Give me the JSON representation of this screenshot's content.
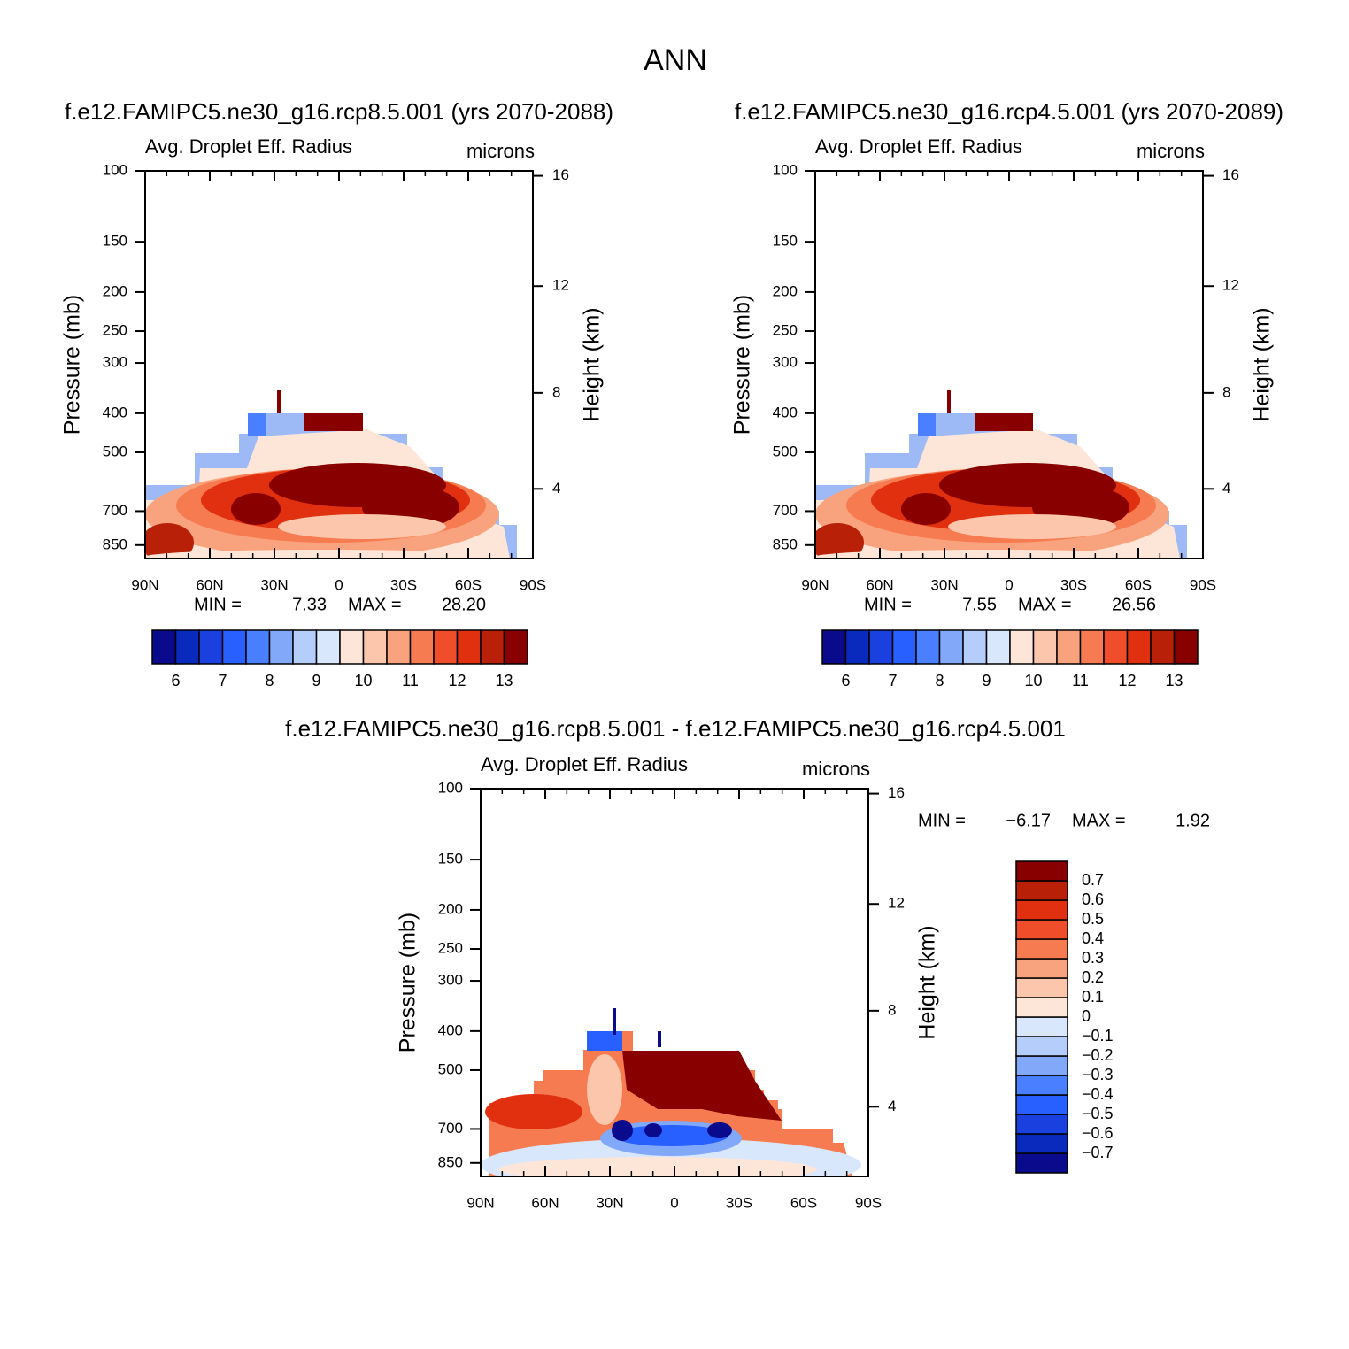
{
  "title": "ANN",
  "chart_data": [
    {
      "type": "contour",
      "title": "f.e12.FAMIPC5.ne30_g16.rcp8.5.001 (yrs 2070-2088)",
      "variable": "Avg. Droplet Eff. Radius",
      "units": "microns",
      "ylabel": "Pressure (mb)",
      "y2label": "Height (km)",
      "log_y": true,
      "ylim": [
        100,
        918
      ],
      "yticks": [
        100,
        150,
        200,
        250,
        300,
        400,
        500,
        700,
        850
      ],
      "y2ticks": [
        16,
        12,
        8,
        4
      ],
      "xlim": [
        90,
        -90
      ],
      "xticks": [
        {
          "value": 90,
          "label": "90N"
        },
        {
          "value": 60,
          "label": "60N"
        },
        {
          "value": 30,
          "label": "30N"
        },
        0,
        {
          "value": -30,
          "label": "30S"
        },
        {
          "value": -60,
          "label": "60S"
        },
        {
          "value": -90,
          "label": "90S"
        }
      ],
      "min_label": "MIN =",
      "min": 7.33,
      "max_label": "MAX =",
      "max": {
        "value": 28.2,
        "label": "28.20"
      },
      "colorbar": {
        "orientation": "horizontal",
        "colors": [
          "#0a0a8c",
          "#0a2abd",
          "#1a40e0",
          "#2860ff",
          "#4a80ff",
          "#82a8fa",
          "#b4cdfb",
          "#d8e7fc",
          "#fde6d8",
          "#fbc6ab",
          "#f8a37e",
          "#f67b50",
          "#f04e2a",
          "#e03010",
          "#b82008",
          "#880000"
        ],
        "labels": [
          6,
          7,
          8,
          9,
          10,
          11,
          12,
          13
        ]
      }
    },
    {
      "type": "contour",
      "title": "f.e12.FAMIPC5.ne30_g16.rcp4.5.001 (yrs 2070-2089)",
      "variable": "Avg. Droplet Eff. Radius",
      "units": "microns",
      "ylabel": "Pressure (mb)",
      "y2label": "Height (km)",
      "log_y": true,
      "ylim": [
        100,
        918
      ],
      "yticks": [
        100,
        150,
        200,
        250,
        300,
        400,
        500,
        700,
        850
      ],
      "y2ticks": [
        16,
        12,
        8,
        4
      ],
      "xlim": [
        90,
        -90
      ],
      "xticks": [
        {
          "value": 90,
          "label": "90N"
        },
        {
          "value": 60,
          "label": "60N"
        },
        {
          "value": 30,
          "label": "30N"
        },
        0,
        {
          "value": -30,
          "label": "30S"
        },
        {
          "value": -60,
          "label": "60S"
        },
        {
          "value": -90,
          "label": "90S"
        }
      ],
      "min_label": "MIN =",
      "min": 7.55,
      "max_label": "MAX =",
      "max": 26.56,
      "colorbar": {
        "orientation": "horizontal",
        "colors": [
          "#0a0a8c",
          "#0a2abd",
          "#1a40e0",
          "#2860ff",
          "#4a80ff",
          "#82a8fa",
          "#b4cdfb",
          "#d8e7fc",
          "#fde6d8",
          "#fbc6ab",
          "#f8a37e",
          "#f67b50",
          "#f04e2a",
          "#e03010",
          "#b82008",
          "#880000"
        ],
        "labels": [
          6,
          7,
          8,
          9,
          10,
          11,
          12,
          13
        ]
      }
    },
    {
      "type": "contour",
      "title": "f.e12.FAMIPC5.ne30_g16.rcp8.5.001 - f.e12.FAMIPC5.ne30_g16.rcp4.5.001",
      "variable": "Avg. Droplet Eff. Radius",
      "units": "microns",
      "ylabel": "Pressure (mb)",
      "y2label": "Height (km)",
      "log_y": true,
      "ylim": [
        100,
        918
      ],
      "yticks": [
        100,
        150,
        200,
        250,
        300,
        400,
        500,
        700,
        850
      ],
      "y2ticks": [
        16,
        12,
        8,
        4
      ],
      "xlim": [
        90,
        -90
      ],
      "xticks": [
        {
          "value": 90,
          "label": "90N"
        },
        {
          "value": 60,
          "label": "60N"
        },
        {
          "value": 30,
          "label": "30N"
        },
        0,
        {
          "value": -30,
          "label": "30S"
        },
        {
          "value": -60,
          "label": "60S"
        },
        {
          "value": -90,
          "label": "90S"
        }
      ],
      "min_label": "MIN =",
      "min": {
        "value": -6.17,
        "label": "−6.17"
      },
      "max_label": "MAX =",
      "max": 1.92,
      "colorbar": {
        "orientation": "vertical",
        "colors": [
          "#0a0a8c",
          "#0a2abd",
          "#1a40e0",
          "#2860ff",
          "#4a80ff",
          "#82a8fa",
          "#b4cdfb",
          "#d8e7fc",
          "#fde6d8",
          "#fbc6ab",
          "#f8a37e",
          "#f67b50",
          "#f04e2a",
          "#e03010",
          "#b82008",
          "#880000"
        ],
        "labels": [
          {
            "value": -0.7,
            "label": "−0.7"
          },
          {
            "value": -0.6,
            "label": "−0.6"
          },
          {
            "value": -0.5,
            "label": "−0.5"
          },
          {
            "value": -0.4,
            "label": "−0.4"
          },
          {
            "value": -0.3,
            "label": "−0.3"
          },
          {
            "value": -0.2,
            "label": "−0.2"
          },
          {
            "value": -0.1,
            "label": "−0.1"
          },
          0,
          0.1,
          0.2,
          0.3,
          0.4,
          0.5,
          0.6,
          0.7
        ]
      }
    }
  ]
}
